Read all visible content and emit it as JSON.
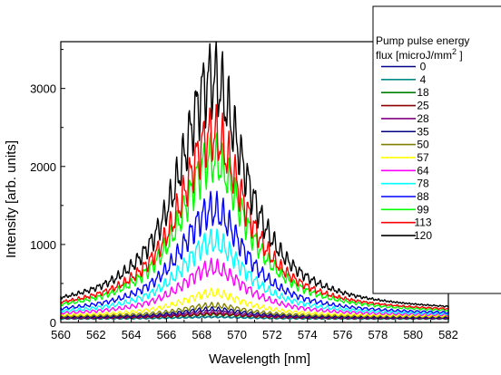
{
  "chart_data": {
    "type": "line",
    "xlabel": "Wavelength [nm]",
    "ylabel": "Intensity [arb. units]",
    "xlim": [
      560,
      582
    ],
    "ylim": [
      0,
      3600
    ],
    "x_ticks": [
      560,
      562,
      564,
      566,
      568,
      570,
      572,
      574,
      576,
      578,
      580,
      582
    ],
    "x_tick_labels": [
      "560",
      "562",
      "564",
      "566",
      "568",
      "570",
      "572",
      "574",
      "576",
      "578",
      "580",
      "582"
    ],
    "y_ticks": [
      0,
      1000,
      2000,
      3000
    ],
    "y_tick_labels": [
      "0",
      "1000",
      "2000",
      "3000"
    ],
    "legend": {
      "title_line1": "Pump pulse energy",
      "title_line2": "flux [microJ/mm",
      "title_sup": "2",
      "title_end": " ]",
      "placement": "top-right, outside plot area"
    },
    "peak_center_nm": 568.6,
    "series": [
      {
        "name": "0",
        "color": "#00008B",
        "background": 50,
        "peak": 20
      },
      {
        "name": "4",
        "color": "#008B8B",
        "background": 45,
        "peak": 25
      },
      {
        "name": "18",
        "color": "#007F00",
        "background": 60,
        "peak": 40
      },
      {
        "name": "25",
        "color": "#8B0000",
        "background": 50,
        "peak": 60
      },
      {
        "name": "28",
        "color": "#800080",
        "background": 55,
        "peak": 80
      },
      {
        "name": "35",
        "color": "#000080",
        "background": 60,
        "peak": 110
      },
      {
        "name": "50",
        "color": "#808000",
        "background": 70,
        "peak": 150
      },
      {
        "name": "57",
        "color": "#FFFF00",
        "background": 75,
        "peak": 300
      },
      {
        "name": "64",
        "color": "#FF00FF",
        "background": 80,
        "peak": 620
      },
      {
        "name": "78",
        "color": "#00FFFF",
        "background": 85,
        "peak": 950
      },
      {
        "name": "88",
        "color": "#0000FF",
        "background": 90,
        "peak": 1350
      },
      {
        "name": "99",
        "color": "#00FF00",
        "background": 100,
        "peak": 2000
      },
      {
        "name": "113",
        "color": "#FF0000",
        "background": 110,
        "peak": 2300
      },
      {
        "name": "120",
        "color": "#000000",
        "background": 120,
        "peak": 3000
      }
    ]
  }
}
